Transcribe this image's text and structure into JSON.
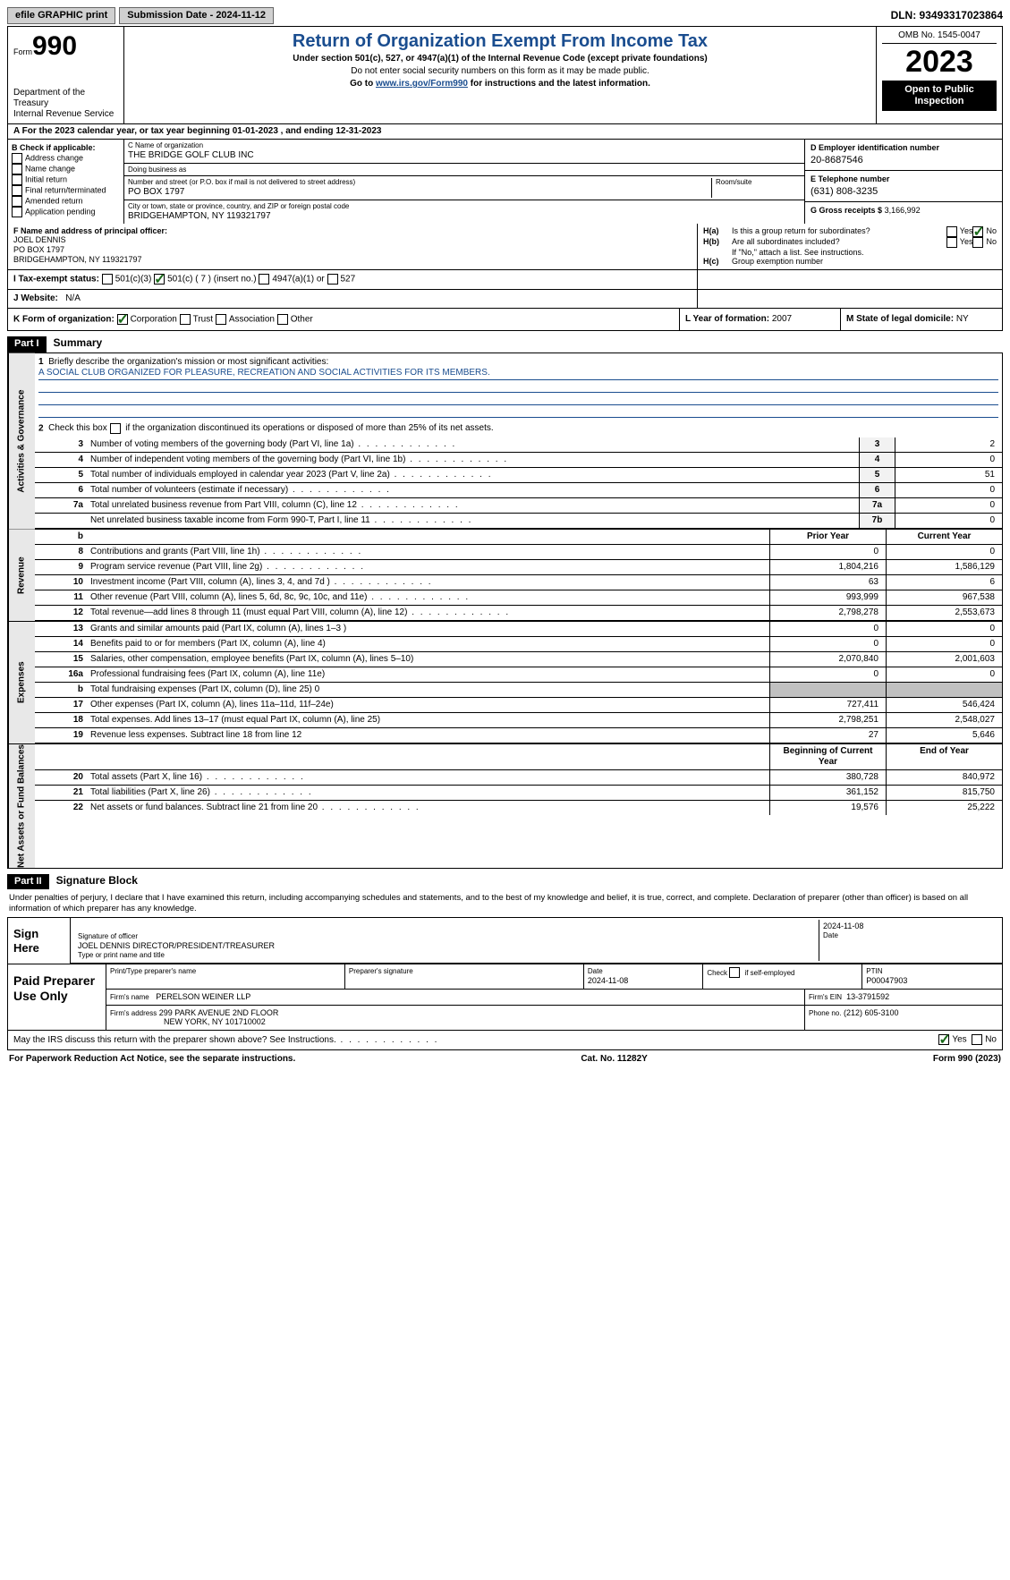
{
  "topbar": {
    "efile": "efile GRAPHIC print",
    "sub_label": "Submission Date - 2024-11-12",
    "dln_label": "DLN: 93493317023864"
  },
  "header": {
    "form_word": "Form",
    "form_num": "990",
    "dept": "Department of the Treasury",
    "irs": "Internal Revenue Service",
    "title": "Return of Organization Exempt From Income Tax",
    "sub1": "Under section 501(c), 527, or 4947(a)(1) of the Internal Revenue Code (except private foundations)",
    "sub2": "Do not enter social security numbers on this form as it may be made public.",
    "sub3_pre": "Go to ",
    "sub3_link": "www.irs.gov/Form990",
    "sub3_post": " for instructions and the latest information.",
    "omb": "OMB No. 1545-0047",
    "year": "2023",
    "open": "Open to Public Inspection"
  },
  "section_a": "A For the 2023 calendar year, or tax year beginning 01-01-2023   , and ending 12-31-2023",
  "b": {
    "label": "B Check if applicable:",
    "items": [
      "Address change",
      "Name change",
      "Initial return",
      "Final return/terminated",
      "Amended return",
      "Application pending"
    ]
  },
  "c": {
    "name_lab": "C Name of organization",
    "name": "THE BRIDGE GOLF CLUB INC",
    "dba_lab": "Doing business as",
    "dba": "",
    "addr_lab": "Number and street (or P.O. box if mail is not delivered to street address)",
    "room_lab": "Room/suite",
    "addr": "PO BOX 1797",
    "city_lab": "City or town, state or province, country, and ZIP or foreign postal code",
    "city": "BRIDGEHAMPTON, NY  119321797"
  },
  "d": {
    "ein_lab": "D Employer identification number",
    "ein": "20-8687546",
    "tel_lab": "E Telephone number",
    "tel": "(631) 808-3235",
    "gross_lab": "G Gross receipts $",
    "gross": "3,166,992"
  },
  "f": {
    "lab": "F  Name and address of principal officer:",
    "name": "JOEL DENNIS",
    "addr1": "PO BOX 1797",
    "addr2": "BRIDGEHAMPTON, NY  119321797"
  },
  "h": {
    "a_lab": "H(a)  Is this a group return for subordinates?",
    "b_lab": "H(b)  Are all subordinates included?",
    "b_note": "If \"No,\" attach a list. See instructions.",
    "c_lab": "H(c)  Group exemption number",
    "yes": "Yes",
    "no": "No"
  },
  "i": {
    "lab": "I   Tax-exempt status:",
    "o1": "501(c)(3)",
    "o2": "501(c) ( 7 ) (insert no.)",
    "o3": "4947(a)(1) or",
    "o4": "527"
  },
  "j": {
    "lab": "J   Website:",
    "val": "N/A"
  },
  "k": {
    "lab": "K Form of organization:",
    "o1": "Corporation",
    "o2": "Trust",
    "o3": "Association",
    "o4": "Other"
  },
  "l": {
    "lab": "L Year of formation:",
    "val": "2007"
  },
  "m": {
    "lab": "M State of legal domicile:",
    "val": "NY"
  },
  "part1": {
    "hdr": "Part I",
    "title": "Summary"
  },
  "summary": {
    "q1": "Briefly describe the organization's mission or most significant activities:",
    "mission": "A SOCIAL CLUB ORGANIZED FOR PLEASURE, RECREATION AND SOCIAL ACTIVITIES FOR ITS MEMBERS.",
    "q2": "Check this box        if the organization discontinued its operations or disposed of more than 25% of its net assets.",
    "tabs": {
      "gov": "Activities & Governance",
      "rev": "Revenue",
      "exp": "Expenses",
      "net": "Net Assets or Fund Balances"
    },
    "rows_single": [
      {
        "n": "3",
        "t": "Number of voting members of the governing body (Part VI, line 1a)",
        "box": "3",
        "v": "2"
      },
      {
        "n": "4",
        "t": "Number of independent voting members of the governing body (Part VI, line 1b)",
        "box": "4",
        "v": "0"
      },
      {
        "n": "5",
        "t": "Total number of individuals employed in calendar year 2023 (Part V, line 2a)",
        "box": "5",
        "v": "51"
      },
      {
        "n": "6",
        "t": "Total number of volunteers (estimate if necessary)",
        "box": "6",
        "v": "0"
      },
      {
        "n": "7a",
        "t": "Total unrelated business revenue from Part VIII, column (C), line 12",
        "box": "7a",
        "v": "0"
      },
      {
        "n": "",
        "t": "Net unrelated business taxable income from Form 990-T, Part I, line 11",
        "box": "7b",
        "v": "0"
      }
    ],
    "hdr_prior": "Prior Year",
    "hdr_current": "Current Year",
    "rows_rev": [
      {
        "n": "8",
        "t": "Contributions and grants (Part VIII, line 1h)",
        "p": "0",
        "c": "0"
      },
      {
        "n": "9",
        "t": "Program service revenue (Part VIII, line 2g)",
        "p": "1,804,216",
        "c": "1,586,129"
      },
      {
        "n": "10",
        "t": "Investment income (Part VIII, column (A), lines 3, 4, and 7d )",
        "p": "63",
        "c": "6"
      },
      {
        "n": "11",
        "t": "Other revenue (Part VIII, column (A), lines 5, 6d, 8c, 9c, 10c, and 11e)",
        "p": "993,999",
        "c": "967,538"
      },
      {
        "n": "12",
        "t": "Total revenue—add lines 8 through 11 (must equal Part VIII, column (A), line 12)",
        "p": "2,798,278",
        "c": "2,553,673"
      }
    ],
    "rows_exp": [
      {
        "n": "13",
        "t": "Grants and similar amounts paid (Part IX, column (A), lines 1–3 )",
        "p": "0",
        "c": "0"
      },
      {
        "n": "14",
        "t": "Benefits paid to or for members (Part IX, column (A), line 4)",
        "p": "0",
        "c": "0"
      },
      {
        "n": "15",
        "t": "Salaries, other compensation, employee benefits (Part IX, column (A), lines 5–10)",
        "p": "2,070,840",
        "c": "2,001,603"
      },
      {
        "n": "16a",
        "t": "Professional fundraising fees (Part IX, column (A), line 11e)",
        "p": "0",
        "c": "0"
      },
      {
        "n": "b",
        "t": "Total fundraising expenses (Part IX, column (D), line 25) 0",
        "p": "",
        "c": "",
        "gray": true
      },
      {
        "n": "17",
        "t": "Other expenses (Part IX, column (A), lines 11a–11d, 11f–24e)",
        "p": "727,411",
        "c": "546,424"
      },
      {
        "n": "18",
        "t": "Total expenses. Add lines 13–17 (must equal Part IX, column (A), line 25)",
        "p": "2,798,251",
        "c": "2,548,027"
      },
      {
        "n": "19",
        "t": "Revenue less expenses. Subtract line 18 from line 12",
        "p": "27",
        "c": "5,646"
      }
    ],
    "hdr_begin": "Beginning of Current Year",
    "hdr_end": "End of Year",
    "rows_net": [
      {
        "n": "20",
        "t": "Total assets (Part X, line 16)",
        "p": "380,728",
        "c": "840,972"
      },
      {
        "n": "21",
        "t": "Total liabilities (Part X, line 26)",
        "p": "361,152",
        "c": "815,750"
      },
      {
        "n": "22",
        "t": "Net assets or fund balances. Subtract line 21 from line 20",
        "p": "19,576",
        "c": "25,222"
      }
    ]
  },
  "part2": {
    "hdr": "Part II",
    "title": "Signature Block"
  },
  "sig": {
    "decl": "Under penalties of perjury, I declare that I have examined this return, including accompanying schedules and statements, and to the best of my knowledge and belief, it is true, correct, and complete. Declaration of preparer (other than officer) is based on all information of which preparer has any knowledge.",
    "sign_here": "Sign Here",
    "sig_lab": "Signature of officer",
    "date_lab": "Date",
    "date_val": "2024-11-08",
    "officer": "JOEL DENNIS  DIRECTOR/PRESIDENT/TREASURER",
    "type_lab": "Type or print name and title"
  },
  "prep": {
    "lab": "Paid Preparer Use Only",
    "c1": "Print/Type preparer's name",
    "c2": "Preparer's signature",
    "c3_lab": "Date",
    "c3": "2024-11-08",
    "c4_lab": "Check         if self-employed",
    "c5_lab": "PTIN",
    "c5": "P00047903",
    "firm_lab": "Firm's name",
    "firm": "PERELSON WEINER LLP",
    "ein_lab": "Firm's EIN",
    "ein": "13-3791592",
    "addr_lab": "Firm's address",
    "addr1": "299 PARK AVENUE 2ND FLOOR",
    "addr2": "NEW YORK, NY  101710002",
    "phone_lab": "Phone no.",
    "phone": "(212) 605-3100"
  },
  "discuss": {
    "q": "May the IRS discuss this return with the preparer shown above? See Instructions.",
    "yes": "Yes",
    "no": "No"
  },
  "footer": {
    "pra": "For Paperwork Reduction Act Notice, see the separate instructions.",
    "cat": "Cat. No. 11282Y",
    "form": "Form 990 (2023)"
  }
}
